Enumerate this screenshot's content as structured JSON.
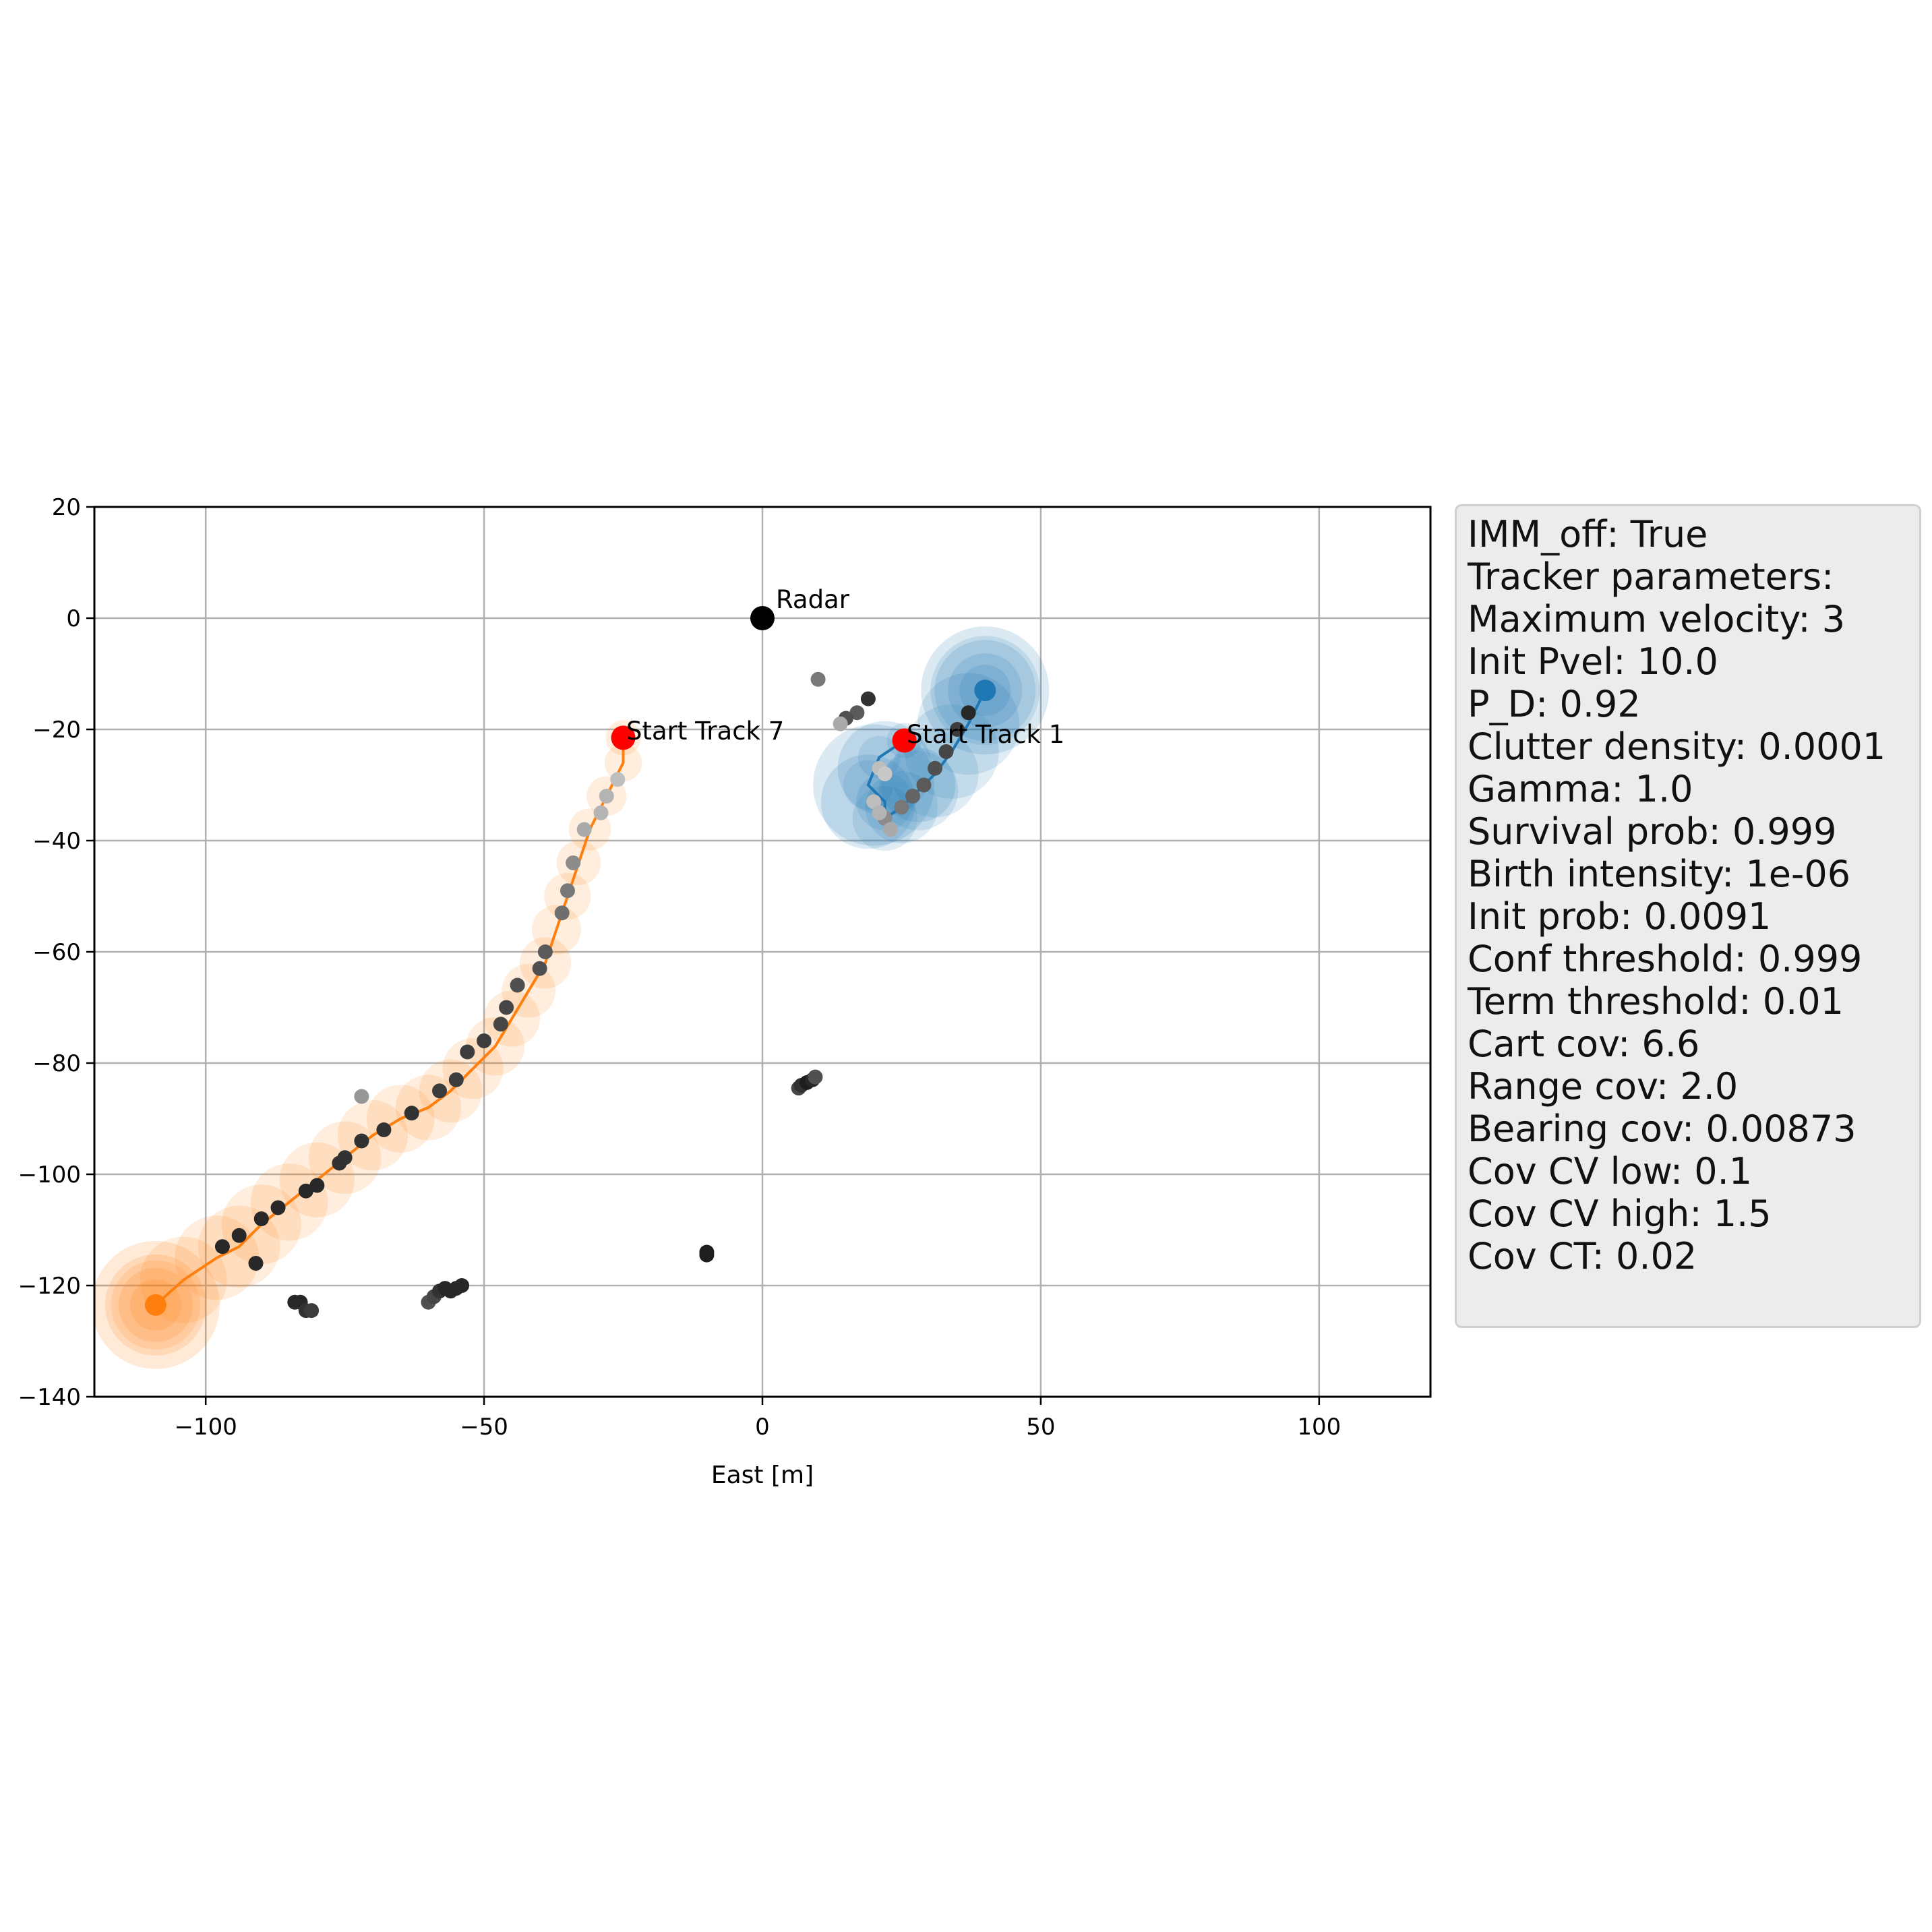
{
  "chart_data": {
    "type": "scatter",
    "xlabel": "East [m]",
    "xlim": [
      -120,
      120
    ],
    "ylim": [
      -140,
      20
    ],
    "xticks": [
      -100,
      -50,
      0,
      50,
      100
    ],
    "yticks": [
      20,
      0,
      -20,
      -40,
      -60,
      -80,
      -100,
      -120,
      -140
    ],
    "xtick_labels": [
      "−100",
      "−50",
      "0",
      "50",
      "100"
    ],
    "ytick_labels": [
      "20",
      "0",
      "−20",
      "−40",
      "−60",
      "−80",
      "−100",
      "−120",
      "−140"
    ],
    "grid": true,
    "colors": {
      "track7": "#ff7f0e",
      "track1": "#1f77b4",
      "start_marker": "#ff0000",
      "radar": "#000000"
    },
    "annotations": {
      "radar": {
        "text": "Radar",
        "x": 0,
        "y": 0
      },
      "start7": {
        "text": "Start Track 7",
        "x": -25,
        "y": -21.5
      },
      "start1": {
        "text": "Start Track 1",
        "x": 25.5,
        "y": -22
      }
    },
    "tracks": [
      {
        "id": "track7",
        "path": [
          [
            -25,
            -21.5
          ],
          [
            -25,
            -26
          ],
          [
            -28,
            -32
          ],
          [
            -31,
            -38
          ],
          [
            -33,
            -44
          ],
          [
            -35,
            -50
          ],
          [
            -37,
            -56
          ],
          [
            -39,
            -62
          ],
          [
            -42,
            -67
          ],
          [
            -45,
            -72
          ],
          [
            -48,
            -77
          ],
          [
            -52,
            -81
          ],
          [
            -56,
            -85
          ],
          [
            -60,
            -88
          ],
          [
            -65,
            -90
          ],
          [
            -70,
            -93
          ],
          [
            -75,
            -97
          ],
          [
            -80,
            -101
          ],
          [
            -85,
            -105
          ],
          [
            -90,
            -109
          ],
          [
            -94,
            -113
          ],
          [
            -98,
            -115
          ],
          [
            -104,
            -119
          ],
          [
            -109,
            -123.5
          ]
        ],
        "endpoint": [
          -109,
          -123.5
        ]
      },
      {
        "id": "track1",
        "path": [
          [
            25.5,
            -22
          ],
          [
            21,
            -25
          ],
          [
            19,
            -30
          ],
          [
            22,
            -33
          ],
          [
            22,
            -36
          ],
          [
            25,
            -34
          ],
          [
            28,
            -31
          ],
          [
            31,
            -28
          ],
          [
            34,
            -24
          ],
          [
            37,
            -19
          ],
          [
            40,
            -13
          ]
        ],
        "endpoint": [
          40,
          -13
        ]
      }
    ],
    "measurements": [
      {
        "x": 10,
        "y": -11,
        "s": 0.5
      },
      {
        "x": 19,
        "y": -14.5,
        "s": 0.15
      },
      {
        "x": 17,
        "y": -17,
        "s": 0.35
      },
      {
        "x": 15,
        "y": -18,
        "s": 0.3
      },
      {
        "x": 14,
        "y": -19,
        "s": 0.75
      },
      {
        "x": 37,
        "y": -17,
        "s": 0.1
      },
      {
        "x": 35,
        "y": -20,
        "s": 0.2
      },
      {
        "x": 33,
        "y": -24,
        "s": 0.25
      },
      {
        "x": 31,
        "y": -27,
        "s": 0.3
      },
      {
        "x": 29,
        "y": -30,
        "s": 0.35
      },
      {
        "x": 27,
        "y": -32,
        "s": 0.4
      },
      {
        "x": 25,
        "y": -34,
        "s": 0.5
      },
      {
        "x": 22,
        "y": -36,
        "s": 0.6
      },
      {
        "x": 21,
        "y": -27,
        "s": 0.85
      },
      {
        "x": 22,
        "y": -28,
        "s": 0.9
      },
      {
        "x": 20,
        "y": -33,
        "s": 0.85
      },
      {
        "x": 21,
        "y": -35,
        "s": 0.8
      },
      {
        "x": 23,
        "y": -38,
        "s": 0.75
      },
      {
        "x": -26,
        "y": -29,
        "s": 0.85
      },
      {
        "x": -28,
        "y": -32,
        "s": 0.8
      },
      {
        "x": -29,
        "y": -35,
        "s": 0.8
      },
      {
        "x": -32,
        "y": -38,
        "s": 0.75
      },
      {
        "x": -34,
        "y": -44,
        "s": 0.6
      },
      {
        "x": -35,
        "y": -49,
        "s": 0.5
      },
      {
        "x": -36,
        "y": -53,
        "s": 0.45
      },
      {
        "x": -39,
        "y": -60,
        "s": 0.35
      },
      {
        "x": -40,
        "y": -63,
        "s": 0.3
      },
      {
        "x": -44,
        "y": -66,
        "s": 0.3
      },
      {
        "x": -46,
        "y": -70,
        "s": 0.25
      },
      {
        "x": -47,
        "y": -73,
        "s": 0.25
      },
      {
        "x": -50,
        "y": -76,
        "s": 0.2
      },
      {
        "x": -53,
        "y": -78,
        "s": 0.2
      },
      {
        "x": -55,
        "y": -83,
        "s": 0.2
      },
      {
        "x": -58,
        "y": -85,
        "s": 0.2
      },
      {
        "x": -63,
        "y": -89,
        "s": 0.15
      },
      {
        "x": -68,
        "y": -92,
        "s": 0.15
      },
      {
        "x": -72,
        "y": -94,
        "s": 0.15
      },
      {
        "x": -75,
        "y": -97,
        "s": 0.15
      },
      {
        "x": -76,
        "y": -98,
        "s": 0.15
      },
      {
        "x": -80,
        "y": -102,
        "s": 0.1
      },
      {
        "x": -82,
        "y": -103,
        "s": 0.1
      },
      {
        "x": -87,
        "y": -106,
        "s": 0.1
      },
      {
        "x": -90,
        "y": -108,
        "s": 0.1
      },
      {
        "x": -94,
        "y": -111,
        "s": 0.1
      },
      {
        "x": -97,
        "y": -113,
        "s": 0.1
      },
      {
        "x": -91,
        "y": -116,
        "s": 0.1
      },
      {
        "x": -72,
        "y": -86,
        "s": 0.65
      },
      {
        "x": -84,
        "y": -123,
        "s": 0.1
      },
      {
        "x": -83,
        "y": -123,
        "s": 0.1
      },
      {
        "x": -82,
        "y": -124.5,
        "s": 0.15
      },
      {
        "x": -81,
        "y": -124.5,
        "s": 0.2
      },
      {
        "x": -60,
        "y": -123,
        "s": 0.3
      },
      {
        "x": -59,
        "y": -122,
        "s": 0.25
      },
      {
        "x": -58,
        "y": -121,
        "s": 0.15
      },
      {
        "x": -57,
        "y": -120.5,
        "s": 0.1
      },
      {
        "x": -56,
        "y": -121,
        "s": 0.1
      },
      {
        "x": -55,
        "y": -120.5,
        "s": 0.1
      },
      {
        "x": -54,
        "y": -120,
        "s": 0.1
      },
      {
        "x": -10,
        "y": -114,
        "s": 0.05
      },
      {
        "x": -10,
        "y": -114.5,
        "s": 0.05
      },
      {
        "x": 6.5,
        "y": -84.5,
        "s": 0.25
      },
      {
        "x": 7,
        "y": -84,
        "s": 0.15
      },
      {
        "x": 8,
        "y": -83.5,
        "s": 0.05
      },
      {
        "x": 9,
        "y": -83,
        "s": 0.1
      },
      {
        "x": 9.5,
        "y": -82.5,
        "s": 0.3
      }
    ]
  },
  "param_box": {
    "lines": [
      "IMM_off: True",
      "Tracker parameters:",
      "Maximum velocity: 3",
      "Init Pvel: 10.0",
      "P_D: 0.92",
      "Clutter density: 0.0001",
      "Gamma: 1.0",
      "Survival prob: 0.999",
      "Birth intensity: 1e-06",
      "Init prob: 0.0091",
      "Conf threshold: 0.999",
      "Term threshold: 0.01",
      "Cart cov: 6.6",
      "Range cov: 2.0",
      "Bearing cov: 0.00873",
      "Cov CV low: 0.1",
      "Cov CV high: 1.5",
      "Cov CT: 0.02"
    ]
  }
}
